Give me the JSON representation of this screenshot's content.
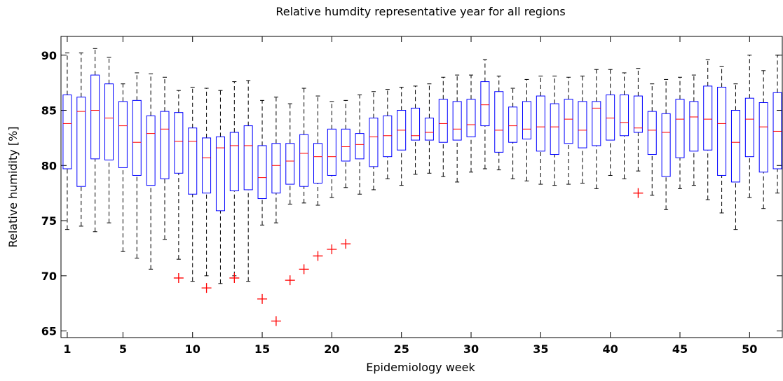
{
  "chart_data": {
    "type": "box",
    "title": "Relative humdity representative year for all regions",
    "x_label": "Epidemiology week",
    "y_label": "Relative humidity [%]",
    "x": [
      1,
      2,
      3,
      4,
      5,
      6,
      7,
      8,
      9,
      10,
      11,
      12,
      13,
      14,
      15,
      16,
      17,
      18,
      19,
      20,
      21,
      22,
      23,
      24,
      25,
      26,
      27,
      28,
      29,
      30,
      31,
      32,
      33,
      34,
      35,
      36,
      37,
      38,
      39,
      40,
      41,
      42,
      43,
      44,
      45,
      46,
      47,
      48,
      49,
      50,
      51,
      52
    ],
    "low": [
      74.2,
      74.5,
      74.0,
      74.8,
      72.2,
      71.6,
      70.6,
      73.3,
      71.5,
      69.5,
      70.0,
      69.3,
      70.0,
      69.5,
      74.6,
      74.8,
      76.5,
      76.6,
      76.4,
      77.1,
      78.0,
      77.4,
      77.8,
      78.8,
      78.2,
      79.2,
      79.3,
      79.0,
      78.5,
      79.4,
      79.7,
      79.6,
      78.8,
      78.6,
      78.3,
      78.2,
      78.3,
      78.4,
      77.9,
      79.1,
      78.8,
      79.5,
      77.3,
      76.0,
      77.9,
      78.2,
      76.9,
      75.7,
      74.2,
      77.1,
      76.1,
      77.5
    ],
    "q1": [
      79.7,
      78.1,
      80.6,
      80.5,
      79.8,
      79.1,
      78.2,
      78.8,
      79.3,
      77.4,
      77.5,
      75.9,
      77.7,
      77.8,
      77.0,
      77.5,
      78.3,
      78.1,
      78.4,
      79.1,
      80.4,
      80.6,
      79.9,
      80.8,
      81.4,
      82.3,
      82.3,
      82.1,
      82.3,
      82.6,
      83.6,
      81.2,
      82.1,
      82.4,
      81.3,
      81.0,
      82.0,
      81.6,
      81.8,
      82.3,
      82.7,
      83.0,
      81.0,
      79.0,
      80.7,
      81.3,
      81.4,
      79.1,
      78.5,
      80.8,
      79.4,
      79.7
    ],
    "median": [
      83.8,
      84.9,
      85.0,
      84.3,
      83.6,
      82.1,
      82.9,
      83.3,
      82.2,
      82.2,
      80.7,
      81.6,
      81.8,
      81.8,
      78.9,
      80.0,
      80.4,
      81.1,
      80.8,
      80.8,
      81.7,
      81.9,
      82.6,
      82.7,
      83.2,
      82.7,
      83.0,
      83.8,
      83.3,
      83.7,
      85.5,
      83.2,
      83.6,
      83.3,
      83.5,
      83.5,
      84.2,
      83.2,
      85.2,
      84.3,
      83.9,
      83.4,
      83.2,
      83.0,
      84.2,
      84.4,
      84.2,
      83.8,
      82.1,
      84.2,
      83.5,
      83.1
    ],
    "q3": [
      86.4,
      86.2,
      88.2,
      87.4,
      85.8,
      85.9,
      84.5,
      84.9,
      84.8,
      83.4,
      82.5,
      82.6,
      83.0,
      83.6,
      81.8,
      82.0,
      82.0,
      82.8,
      82.0,
      83.3,
      83.3,
      82.9,
      84.3,
      84.5,
      85.0,
      85.2,
      84.3,
      86.0,
      85.8,
      86.0,
      87.6,
      86.7,
      85.3,
      85.8,
      86.3,
      85.6,
      86.0,
      85.8,
      85.8,
      86.4,
      86.4,
      86.3,
      84.9,
      84.7,
      86.0,
      85.8,
      87.2,
      87.1,
      85.0,
      86.1,
      85.7,
      86.6
    ],
    "high": [
      90.2,
      90.2,
      90.6,
      89.8,
      87.4,
      88.4,
      88.3,
      88.0,
      86.8,
      87.1,
      87.0,
      86.8,
      87.6,
      87.7,
      85.9,
      86.2,
      85.6,
      87.0,
      86.3,
      85.8,
      85.9,
      86.4,
      86.7,
      86.9,
      87.1,
      87.2,
      87.4,
      88.0,
      88.2,
      88.2,
      89.6,
      88.1,
      87.0,
      87.8,
      88.1,
      88.1,
      88.0,
      88.1,
      88.7,
      88.7,
      88.4,
      88.8,
      87.4,
      87.8,
      88.0,
      88.2,
      89.6,
      89.0,
      87.4,
      90.0,
      88.6,
      90.0
    ],
    "outliers": {
      "x": [
        9,
        11,
        13,
        15,
        16,
        17,
        18,
        19,
        20,
        21,
        42
      ],
      "values": [
        69.8,
        68.9,
        69.8,
        67.9,
        65.9,
        69.6,
        70.6,
        71.8,
        72.4,
        72.9,
        77.5
      ]
    },
    "box_color": "#0000ff",
    "median_color": "#ff0000",
    "whisker_color": "#000000",
    "outlier_color": "#ff0000",
    "xlim": [
      0.55,
      52.35
    ],
    "ylim": [
      64.4,
      91.7
    ],
    "xticks": [
      1,
      5,
      10,
      15,
      20,
      25,
      30,
      35,
      40,
      45,
      50
    ],
    "yticks": [
      65,
      70,
      75,
      80,
      85,
      90
    ]
  }
}
